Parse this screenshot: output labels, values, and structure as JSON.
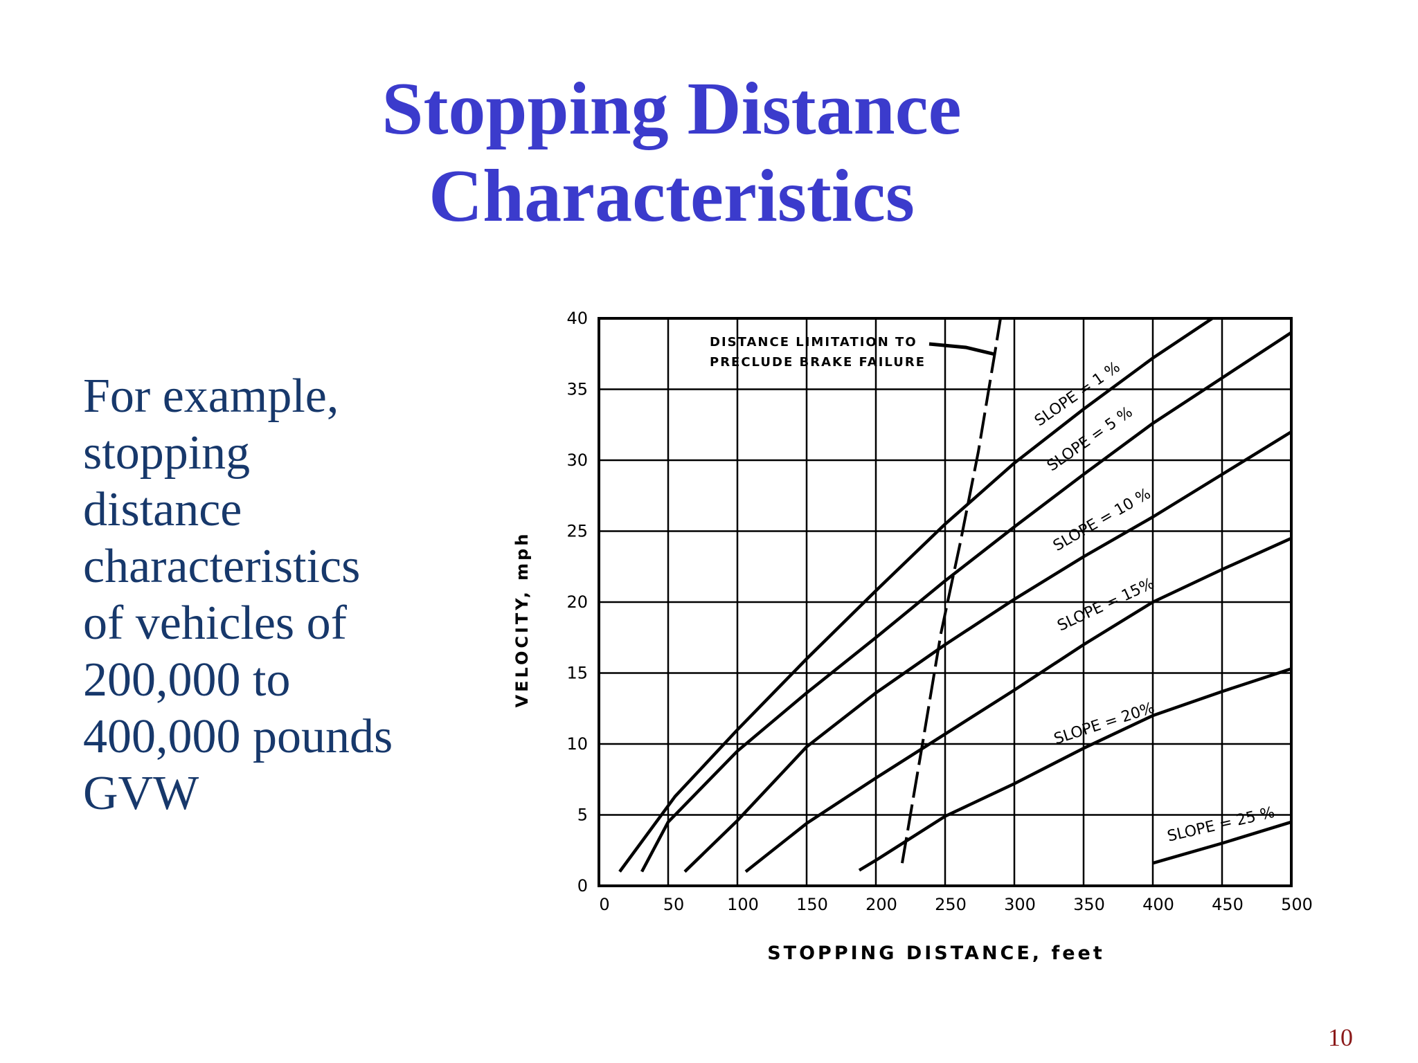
{
  "title": [
    "Stopping Distance",
    "Characteristics"
  ],
  "body": [
    "For example,",
    "stopping",
    "distance",
    "characteristics",
    "of vehicles of",
    "200,000 to",
    "400,000 pounds",
    "GVW"
  ],
  "page_number": "10",
  "chart_data": {
    "type": "line",
    "x_label": "STOPPING DISTANCE, feet",
    "y_label": "VELOCITY, mph",
    "xlim": [
      0,
      500
    ],
    "ylim": [
      0,
      40
    ],
    "xticks": [
      0,
      50,
      100,
      150,
      200,
      250,
      300,
      350,
      400,
      450,
      500
    ],
    "yticks": [
      0,
      5,
      10,
      15,
      20,
      25,
      30,
      35,
      40
    ],
    "grid": true,
    "annotations": [
      {
        "text": [
          "DISTANCE LIMITATION TO",
          "PRECLUDE BRAKE FAILURE"
        ]
      }
    ],
    "series": [
      {
        "name": "SLOPE = 1 %",
        "color": "#000000",
        "x": [
          15,
          55,
          100,
          150,
          200,
          250,
          300,
          350,
          400,
          443
        ],
        "values": [
          1,
          6.3,
          11,
          16,
          20.8,
          25.5,
          29.8,
          33.6,
          37.2,
          40
        ]
      },
      {
        "name": "SLOPE = 5 %",
        "color": "#000000",
        "x": [
          31,
          50,
          100,
          150,
          200,
          250,
          300,
          350,
          400,
          450,
          500
        ],
        "values": [
          1,
          4.5,
          9.5,
          13.6,
          17.5,
          21.5,
          25.3,
          29,
          32.6,
          35.8,
          39
        ]
      },
      {
        "name": "SLOPE = 10 %",
        "color": "#000000",
        "x": [
          62,
          100,
          150,
          200,
          250,
          300,
          350,
          400,
          450,
          500
        ],
        "values": [
          1,
          4.6,
          9.8,
          13.6,
          17,
          20.2,
          23.2,
          26,
          29,
          32
        ]
      },
      {
        "name": "SLOPE = 15%",
        "color": "#000000",
        "x": [
          106,
          150,
          200,
          250,
          300,
          350,
          400,
          450,
          500
        ],
        "values": [
          1,
          4.4,
          7.6,
          10.7,
          13.8,
          17,
          20,
          22.3,
          24.5
        ]
      },
      {
        "name": "SLOPE = 20%",
        "color": "#000000",
        "x": [
          188,
          200,
          250,
          300,
          350,
          400,
          450,
          500
        ],
        "values": [
          1.1,
          1.8,
          4.9,
          7.2,
          9.7,
          12,
          13.7,
          15.3
        ]
      },
      {
        "name": "SLOPE = 25 %",
        "color": "#000000",
        "x": [
          400,
          450,
          500
        ],
        "values": [
          1.6,
          3,
          4.5
        ]
      },
      {
        "style": "dashed",
        "color": "#000000",
        "x": [
          219,
          234,
          247,
          261,
          274,
          286,
          290
        ],
        "values": [
          1.6,
          10.2,
          17.8,
          24.2,
          30.6,
          37.6,
          40
        ]
      }
    ]
  }
}
